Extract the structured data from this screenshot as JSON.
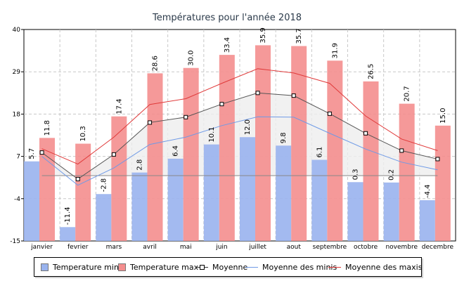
{
  "chart_data": {
    "type": "bar",
    "title": "Températures pour l'année 2018",
    "categories": [
      "janvier",
      "fevrier",
      "mars",
      "avril",
      "mai",
      "juin",
      "juillet",
      "aout",
      "septembre",
      "octobre",
      "novembre",
      "decembre"
    ],
    "ylim": [
      -15,
      40
    ],
    "yticks": [
      -15,
      -4,
      7,
      18,
      29,
      40
    ],
    "ytick_labels": [
      "-15",
      "-4",
      "7",
      "18",
      "29",
      "40"
    ],
    "grid": true,
    "legend_position": "bottom",
    "series": [
      {
        "name": "Temperature min",
        "kind": "bar",
        "color": "#99b3ee",
        "values": [
          5.7,
          -11.4,
          -2.8,
          2.8,
          6.4,
          10.1,
          12.0,
          9.8,
          6.1,
          0.3,
          0.2,
          -4.4
        ],
        "labels": [
          "5.7",
          "-11.4",
          "-2.8",
          "2.8",
          "6.4",
          "10.1",
          "12.0",
          "9.8",
          "6.1",
          "0.3",
          "0.2",
          "-4.4"
        ]
      },
      {
        "name": "Temperature max",
        "kind": "bar",
        "color": "#f48e8e",
        "values": [
          11.8,
          10.3,
          17.4,
          28.6,
          30.0,
          33.4,
          35.9,
          35.7,
          31.9,
          26.5,
          20.7,
          15.0
        ],
        "labels": [
          "11.8",
          "10.3",
          "17.4",
          "28.6",
          "30.0",
          "33.4",
          "35.9",
          "35.7",
          "31.9",
          "26.5",
          "20.7",
          "15.0"
        ]
      },
      {
        "name": "Moyenne",
        "kind": "line",
        "color": "#555555",
        "values": [
          8.0,
          1.1,
          7.5,
          15.8,
          17.2,
          20.6,
          23.5,
          22.8,
          18.1,
          13.0,
          8.5,
          6.3
        ]
      },
      {
        "name": "Moyenne des minis",
        "kind": "line",
        "color": "#6f9ae6",
        "values": [
          7.0,
          -0.5,
          4.0,
          10.1,
          12.0,
          15.0,
          17.3,
          17.2,
          13.0,
          8.9,
          5.5,
          3.5
        ]
      },
      {
        "name": "Moyenne des maxis",
        "kind": "line",
        "color": "#e03a3a",
        "values": [
          9.0,
          5.0,
          12.0,
          20.5,
          22.0,
          26.0,
          29.8,
          28.7,
          26.0,
          17.5,
          11.5,
          8.5
        ]
      }
    ],
    "reference_line": {
      "value": 2.0,
      "color": "#888888"
    }
  },
  "legend": {
    "items": [
      {
        "label": "Temperature min",
        "type": "rect",
        "color": "#99b3ee"
      },
      {
        "label": "Temperature max",
        "type": "rect",
        "color": "#f48e8e"
      },
      {
        "label": "Moyenne",
        "type": "line-marker",
        "color": "#333333"
      },
      {
        "label": "Moyenne des minis",
        "type": "line",
        "color": "#6f9ae6"
      },
      {
        "label": "Moyenne des maxis",
        "type": "line",
        "color": "#e03a3a"
      }
    ]
  }
}
